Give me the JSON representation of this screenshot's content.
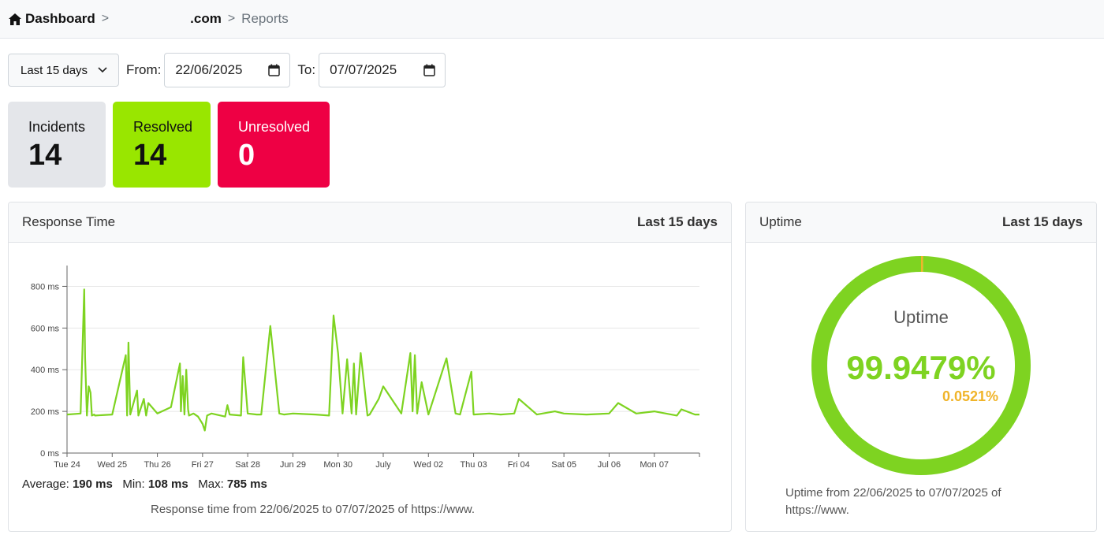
{
  "breadcrumb": {
    "home": "Dashboard",
    "domain": ".com",
    "current": "Reports"
  },
  "filters": {
    "range_label": "Last 15 days",
    "from_label": "From:",
    "from_value": "22/06/2025",
    "to_label": "To:",
    "to_value": "07/07/2025"
  },
  "stats": {
    "incidents_label": "Incidents",
    "incidents_value": "14",
    "resolved_label": "Resolved",
    "resolved_value": "14",
    "unresolved_label": "Unresolved",
    "unresolved_value": "0"
  },
  "response_panel": {
    "title": "Response Time",
    "range": "Last 15 days",
    "average_label": "Average:",
    "average_value": "190 ms",
    "min_label": "Min:",
    "min_value": "108 ms",
    "max_label": "Max:",
    "max_value": "785 ms",
    "caption": "Response time from 22/06/2025 to 07/07/2025 of https://www."
  },
  "uptime_panel": {
    "title": "Uptime",
    "range": "Last 15 days",
    "center_label": "Uptime",
    "uptime_percent": "99.9479%",
    "downtime_percent": "0.0521%",
    "uptime_value": 99.9479,
    "caption": "Uptime from 22/06/2025 to 07/07/2025 of https://www."
  },
  "colors": {
    "line": "#7ed321",
    "uptime": "#7ed321",
    "downtime": "#f0b429",
    "resolved": "#99e600",
    "unresolved": "#ee0044"
  },
  "chart_data": {
    "type": "line",
    "title": "",
    "xlabel": "",
    "ylabel": "",
    "ylim": [
      0,
      900
    ],
    "yticks": [
      "0 ms",
      "200 ms",
      "400 ms",
      "600 ms",
      "800 ms"
    ],
    "ytick_values": [
      0,
      200,
      400,
      600,
      800
    ],
    "xticks": [
      "Tue 24",
      "Wed 25",
      "Thu 26",
      "Fri 27",
      "Sat 28",
      "Jun 29",
      "Mon 30",
      "July",
      "Wed 02",
      "Thu 03",
      "Fri 04",
      "Sat 05",
      "Jul 06",
      "Mon 07"
    ],
    "grid": true,
    "series": [
      {
        "x": [
          0,
          0.3,
          0.38,
          0.4,
          0.44,
          0.48,
          0.52,
          0.55,
          0.6,
          0.62,
          1.0,
          1.3,
          1.33,
          1.36,
          1.4,
          1.55,
          1.58,
          1.7,
          1.75,
          1.8,
          2.0,
          2.3,
          2.5,
          2.52,
          2.56,
          2.6,
          2.64,
          2.68,
          2.7,
          2.8,
          2.9,
          3.0,
          3.05,
          3.1,
          3.2,
          3.5,
          3.55,
          3.6,
          3.85,
          3.9,
          4.0,
          4.2,
          4.3,
          4.5,
          4.7,
          4.8,
          5.0,
          5.5,
          5.8,
          5.9,
          6.0,
          6.1,
          6.2,
          6.3,
          6.35,
          6.4,
          6.5,
          6.65,
          6.7,
          6.9,
          7.0,
          7.4,
          7.6,
          7.65,
          7.7,
          7.75,
          7.85,
          8.0,
          8.4,
          8.6,
          8.7,
          8.95,
          9.0,
          9.35,
          9.6,
          9.9,
          10.0,
          10.4,
          10.8,
          11.0,
          11.5,
          12.0,
          12.2,
          12.6,
          13.0,
          13.5,
          13.6,
          13.9,
          14.0
        ],
        "y": [
          185,
          190,
          785,
          460,
          180,
          320,
          290,
          180,
          185,
          180,
          185,
          470,
          180,
          530,
          185,
          300,
          180,
          260,
          180,
          240,
          190,
          220,
          430,
          200,
          370,
          185,
          400,
          210,
          180,
          190,
          175,
          140,
          108,
          180,
          190,
          175,
          230,
          185,
          180,
          460,
          190,
          185,
          185,
          610,
          190,
          185,
          190,
          185,
          180,
          660,
          480,
          190,
          450,
          190,
          430,
          185,
          480,
          180,
          185,
          260,
          320,
          190,
          480,
          200,
          470,
          190,
          340,
          185,
          455,
          190,
          185,
          390,
          185,
          190,
          185,
          190,
          260,
          185,
          200,
          190,
          185,
          190,
          240,
          190,
          200,
          180,
          210,
          185,
          185
        ]
      }
    ]
  }
}
